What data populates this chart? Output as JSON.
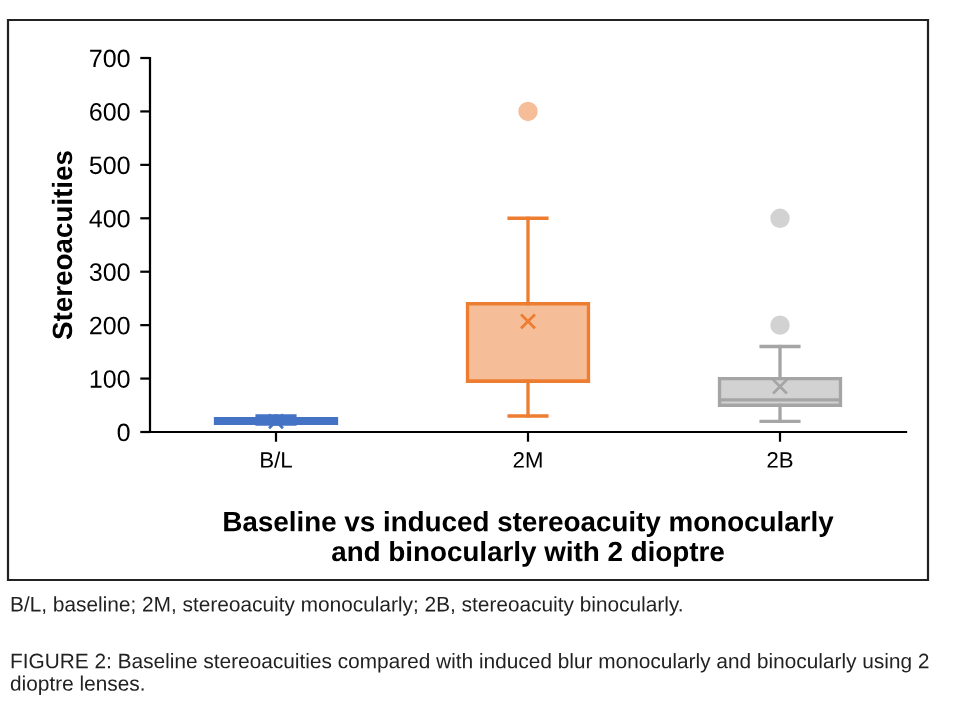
{
  "chart_data": {
    "type": "box",
    "categories": [
      "B/L",
      "2M",
      "2B"
    ],
    "ylabel": "Stereoacuities",
    "xlabel": "Baseline vs induced stereoacuity monocularly\nand binocularly with 2 dioptre",
    "boxes": [
      {
        "low": 15,
        "q1": 16,
        "median": 20,
        "q3": 25,
        "high": 30,
        "mean": 20
      },
      {
        "low": 30,
        "q1": 95,
        "median": 95,
        "q3": 240,
        "high": 400,
        "mean": 207,
        "outliers": [
          600
        ]
      },
      {
        "low": 20,
        "q1": 50,
        "median": 60,
        "q3": 100,
        "high": 160,
        "mean": 85,
        "outliers": [
          400,
          200
        ]
      }
    ],
    "colors": [
      "#4472c4",
      "#ed7d31",
      "#a5a5a5"
    ],
    "ylim": [
      0,
      700
    ],
    "yticks": [
      0,
      100,
      200,
      300,
      400,
      500,
      600,
      700
    ],
    "grid": false,
    "legend": false,
    "annotations": [
      "B/L, baseline; 2M, stereoacuity monocularly; 2B, stereoacuity binocularly.",
      "FIGURE 2: Baseline stereoacuities compared with induced blur monocularly and binocularly using 2 dioptre lenses."
    ]
  }
}
